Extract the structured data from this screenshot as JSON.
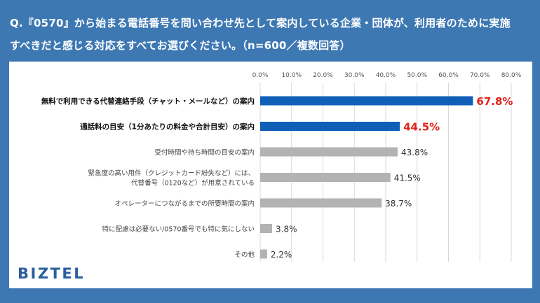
{
  "header": {
    "line1": "Q.『0570』から始まる電話番号を問い合わせ先として案内している企業・団体が、利用者のために実施",
    "line2": "すべきだと感じる対応をすべてお選びください。（n=600／複数回答）"
  },
  "brand": {
    "logo_text": "BIZTEL"
  },
  "colors": {
    "header_bg": "#3d78b3",
    "highlight_bar": "#0f5fb8",
    "normal_bar": "#b3b3b3",
    "highlight_label": "#e0231c",
    "grid": "#d9d9d9"
  },
  "chart_data": {
    "type": "bar",
    "orientation": "horizontal",
    "xlim": [
      0,
      80
    ],
    "ticks": [
      "0.0%",
      "10.0%",
      "20.0%",
      "30.0%",
      "40.0%",
      "50.0%",
      "60.0%",
      "70.0%",
      "80.0%"
    ],
    "tick_values": [
      0,
      10,
      20,
      30,
      40,
      50,
      60,
      70,
      80
    ],
    "grid": true,
    "categories": [
      {
        "lines": [
          "無料で利用できる代替連絡手段（チャット・メールなど）の案内"
        ],
        "value": 67.8,
        "label": "67.8%",
        "highlight": true
      },
      {
        "lines": [
          "通話料の目安（1分あたりの料金や合計目安）の案内"
        ],
        "value": 44.5,
        "label": "44.5%",
        "highlight": true
      },
      {
        "lines": [
          "受付時間や待ち時間の目安の案内"
        ],
        "value": 43.8,
        "label": "43.8%",
        "highlight": false
      },
      {
        "lines": [
          "緊急度の高い用件（クレジットカード紛失など）には、",
          "代替番号（0120など）が用意されている"
        ],
        "value": 41.5,
        "label": "41.5%",
        "highlight": false
      },
      {
        "lines": [
          "オペレーターにつながるまでの所要時間の案内"
        ],
        "value": 38.7,
        "label": "38.7%",
        "highlight": false
      },
      {
        "lines": [
          "特に配慮は必要ない/0570番号でも特に気にしない"
        ],
        "value": 3.8,
        "label": "3.8%",
        "highlight": false
      },
      {
        "lines": [
          "その他"
        ],
        "value": 2.2,
        "label": "2.2%",
        "highlight": false
      }
    ]
  }
}
